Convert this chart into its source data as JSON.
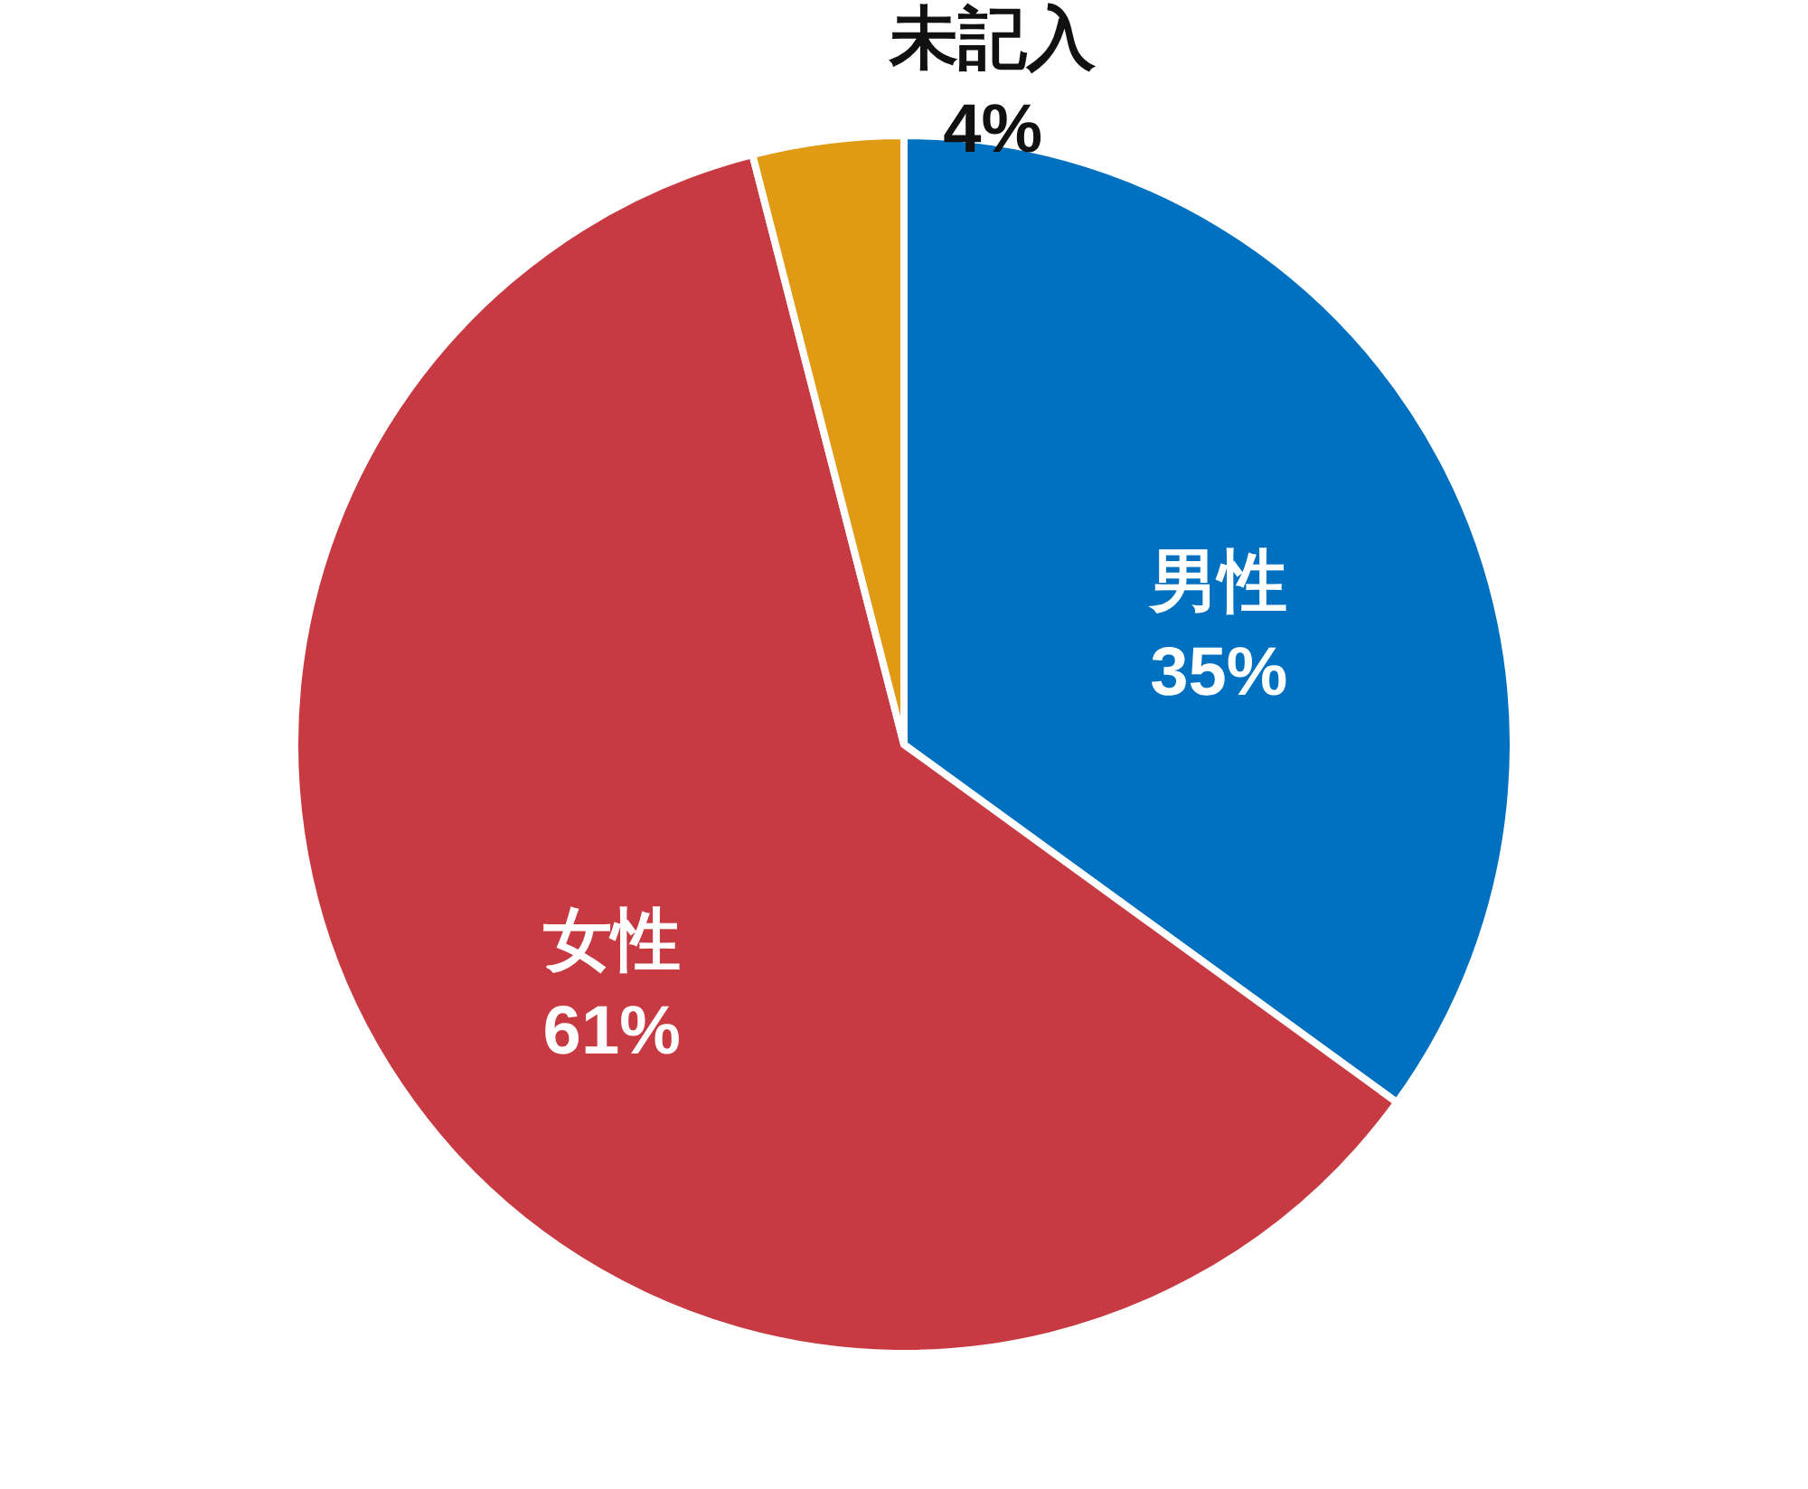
{
  "chart_data": {
    "type": "pie",
    "categories": [
      "男性",
      "女性",
      "未記入"
    ],
    "values": [
      35,
      61,
      4
    ],
    "colors": [
      "#0070c0",
      "#c83a42",
      "#e09a14"
    ],
    "value_labels": [
      "35%",
      "61%",
      "4%"
    ]
  }
}
